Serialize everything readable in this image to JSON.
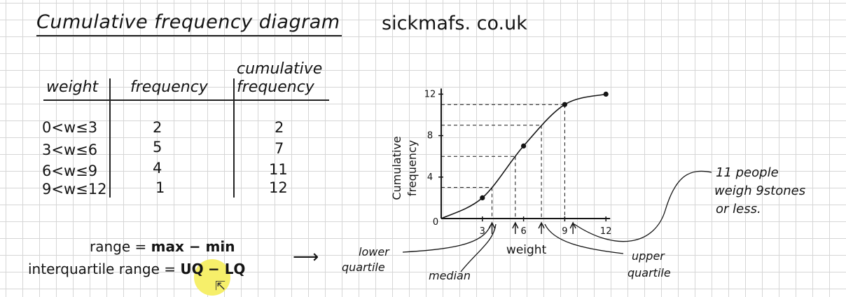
{
  "title": "Cumulative frequency diagram",
  "site": "sickmafs. co.uk",
  "table": {
    "headers": [
      "weight",
      "frequency",
      "cumulative frequency"
    ],
    "rows": [
      {
        "weight": "0<w≤3",
        "frequency": "2",
        "cumulative": "2"
      },
      {
        "weight": "3<w≤6",
        "frequency": "5",
        "cumulative": "7"
      },
      {
        "weight": "6<w≤9",
        "frequency": "4",
        "cumulative": "11"
      },
      {
        "weight": "9<w≤12",
        "frequency": "1",
        "cumulative": "12"
      }
    ]
  },
  "formulas": {
    "range_label": "range =",
    "range_expr": "max − min",
    "iqr_label": "interquartile range =",
    "iqr_uq": "UQ",
    "iqr_rest": "− LQ"
  },
  "arrow": "⟶",
  "annotations": {
    "lower": "lower",
    "quartile": "quartile",
    "median": "median",
    "upper": "upper",
    "eleven_people": "11 people",
    "weigh": "weigh 9stones",
    "or_less": "or less."
  },
  "chart_data": {
    "type": "line",
    "xlabel": "weight",
    "ylabel": "Cumulative frequency",
    "x_ticks": [
      "0",
      "3",
      "6",
      "9",
      "12"
    ],
    "y_ticks": [
      "4",
      "8",
      "12"
    ],
    "xlim": [
      0,
      12
    ],
    "ylim": [
      0,
      12
    ],
    "points": [
      {
        "x": 0,
        "y": 0
      },
      {
        "x": 3,
        "y": 2
      },
      {
        "x": 6,
        "y": 7
      },
      {
        "x": 9,
        "y": 11
      },
      {
        "x": 12,
        "y": 12
      }
    ],
    "guides": [
      {
        "name": "lower-quartile",
        "x": 3.7,
        "y": 3
      },
      {
        "name": "median",
        "x": 5.4,
        "y": 6
      },
      {
        "name": "upper-quartile",
        "x": 7.3,
        "y": 9
      },
      {
        "name": "eleven-people",
        "x": 9,
        "y": 11
      }
    ],
    "colors": {
      "ink": "#151515",
      "highlight": "#f6ef6a"
    }
  }
}
